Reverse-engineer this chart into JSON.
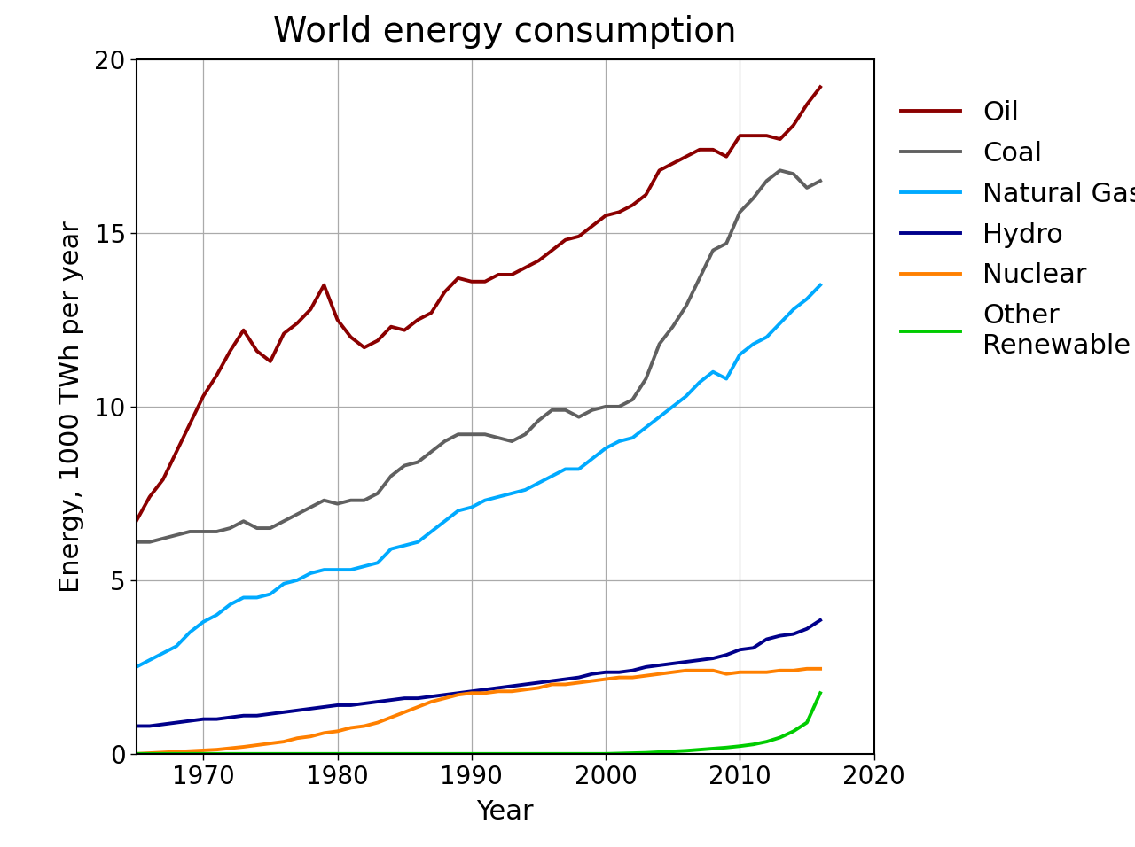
{
  "title": "World energy consumption",
  "xlabel": "Year",
  "ylabel": "Energy, 1000 TWh per year",
  "xlim": [
    1965,
    2017
  ],
  "ylim": [
    0,
    20
  ],
  "yticks": [
    0,
    5,
    10,
    15,
    20
  ],
  "xticks": [
    1970,
    1980,
    1990,
    2000,
    2010,
    2020
  ],
  "colors": {
    "Oil": "#8b0000",
    "Coal": "#606060",
    "Natural Gas": "#00aaff",
    "Hydro": "#00008b",
    "Nuclear": "#ff8000",
    "Other Renewable": "#00cc00"
  },
  "years": [
    1965,
    1966,
    1967,
    1968,
    1969,
    1970,
    1971,
    1972,
    1973,
    1974,
    1975,
    1976,
    1977,
    1978,
    1979,
    1980,
    1981,
    1982,
    1983,
    1984,
    1985,
    1986,
    1987,
    1988,
    1989,
    1990,
    1991,
    1992,
    1993,
    1994,
    1995,
    1996,
    1997,
    1998,
    1999,
    2000,
    2001,
    2002,
    2003,
    2004,
    2005,
    2006,
    2007,
    2008,
    2009,
    2010,
    2011,
    2012,
    2013,
    2014,
    2015,
    2016
  ],
  "oil": [
    6.7,
    7.4,
    7.9,
    8.7,
    9.5,
    10.3,
    10.9,
    11.6,
    12.2,
    11.6,
    11.3,
    12.1,
    12.4,
    12.8,
    13.5,
    12.5,
    12.0,
    11.7,
    11.9,
    12.3,
    12.2,
    12.5,
    12.7,
    13.3,
    13.7,
    13.6,
    13.6,
    13.8,
    13.8,
    14.0,
    14.2,
    14.5,
    14.8,
    14.9,
    15.2,
    15.5,
    15.6,
    15.8,
    16.1,
    16.8,
    17.0,
    17.2,
    17.4,
    17.4,
    17.2,
    17.8,
    17.8,
    17.8,
    17.7,
    18.1,
    18.7,
    19.2
  ],
  "coal": [
    6.1,
    6.1,
    6.2,
    6.3,
    6.4,
    6.4,
    6.4,
    6.5,
    6.7,
    6.5,
    6.5,
    6.7,
    6.9,
    7.1,
    7.3,
    7.2,
    7.3,
    7.3,
    7.5,
    8.0,
    8.3,
    8.4,
    8.7,
    9.0,
    9.2,
    9.2,
    9.2,
    9.1,
    9.0,
    9.2,
    9.6,
    9.9,
    9.9,
    9.7,
    9.9,
    10.0,
    10.0,
    10.2,
    10.8,
    11.8,
    12.3,
    12.9,
    13.7,
    14.5,
    14.7,
    15.6,
    16.0,
    16.5,
    16.8,
    16.7,
    16.3,
    16.5
  ],
  "natural_gas": [
    2.5,
    2.7,
    2.9,
    3.1,
    3.5,
    3.8,
    4.0,
    4.3,
    4.5,
    4.5,
    4.6,
    4.9,
    5.0,
    5.2,
    5.3,
    5.3,
    5.3,
    5.4,
    5.5,
    5.9,
    6.0,
    6.1,
    6.4,
    6.7,
    7.0,
    7.1,
    7.3,
    7.4,
    7.5,
    7.6,
    7.8,
    8.0,
    8.2,
    8.2,
    8.5,
    8.8,
    9.0,
    9.1,
    9.4,
    9.7,
    10.0,
    10.3,
    10.7,
    11.0,
    10.8,
    11.5,
    11.8,
    12.0,
    12.4,
    12.8,
    13.1,
    13.5
  ],
  "hydro": [
    0.8,
    0.8,
    0.85,
    0.9,
    0.95,
    1.0,
    1.0,
    1.05,
    1.1,
    1.1,
    1.15,
    1.2,
    1.25,
    1.3,
    1.35,
    1.4,
    1.4,
    1.45,
    1.5,
    1.55,
    1.6,
    1.6,
    1.65,
    1.7,
    1.75,
    1.8,
    1.85,
    1.9,
    1.95,
    2.0,
    2.05,
    2.1,
    2.15,
    2.2,
    2.3,
    2.35,
    2.35,
    2.4,
    2.5,
    2.55,
    2.6,
    2.65,
    2.7,
    2.75,
    2.85,
    3.0,
    3.05,
    3.3,
    3.4,
    3.45,
    3.6,
    3.85
  ],
  "nuclear": [
    0.0,
    0.02,
    0.04,
    0.06,
    0.08,
    0.1,
    0.12,
    0.16,
    0.2,
    0.25,
    0.3,
    0.35,
    0.45,
    0.5,
    0.6,
    0.65,
    0.75,
    0.8,
    0.9,
    1.05,
    1.2,
    1.35,
    1.5,
    1.6,
    1.7,
    1.75,
    1.75,
    1.8,
    1.8,
    1.85,
    1.9,
    2.0,
    2.0,
    2.05,
    2.1,
    2.15,
    2.2,
    2.2,
    2.25,
    2.3,
    2.35,
    2.4,
    2.4,
    2.4,
    2.3,
    2.35,
    2.35,
    2.35,
    2.4,
    2.4,
    2.45,
    2.45
  ],
  "other_renewable": [
    0.0,
    0.0,
    0.0,
    0.0,
    0.0,
    0.0,
    0.0,
    0.0,
    0.0,
    0.0,
    0.0,
    0.0,
    0.0,
    0.0,
    0.0,
    0.0,
    0.0,
    0.0,
    0.0,
    0.0,
    0.0,
    0.0,
    0.0,
    0.0,
    0.0,
    0.0,
    0.0,
    0.0,
    0.0,
    0.0,
    0.0,
    0.0,
    0.0,
    0.0,
    0.0,
    0.0,
    0.01,
    0.02,
    0.03,
    0.05,
    0.07,
    0.09,
    0.12,
    0.15,
    0.18,
    0.22,
    0.27,
    0.35,
    0.47,
    0.65,
    0.9,
    1.75
  ],
  "title_fontsize": 28,
  "axis_label_fontsize": 22,
  "tick_fontsize": 20,
  "legend_fontsize": 22,
  "lw": 2.8,
  "background_color": "#ffffff",
  "grid_color": "#aaaaaa"
}
